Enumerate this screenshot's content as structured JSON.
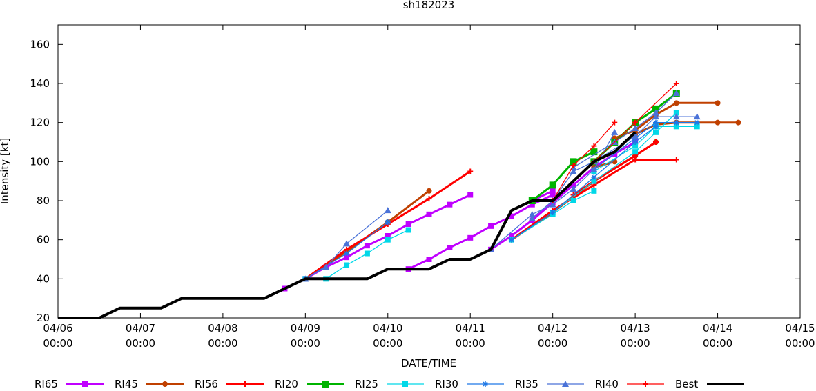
{
  "chart_data": {
    "type": "line",
    "title": "sh182023",
    "xlabel": "DATE/TIME",
    "ylabel": "Intensity [kt]",
    "xlim": [
      0,
      9
    ],
    "ylim": [
      20,
      170
    ],
    "x_unit": "days since 04/06 00:00",
    "x_ticks": [
      {
        "value": 0,
        "date": "04/06",
        "time": "00:00"
      },
      {
        "value": 1,
        "date": "04/07",
        "time": "00:00"
      },
      {
        "value": 2,
        "date": "04/08",
        "time": "00:00"
      },
      {
        "value": 3,
        "date": "04/09",
        "time": "00:00"
      },
      {
        "value": 4,
        "date": "04/10",
        "time": "00:00"
      },
      {
        "value": 5,
        "date": "04/11",
        "time": "00:00"
      },
      {
        "value": 6,
        "date": "04/12",
        "time": "00:00"
      },
      {
        "value": 7,
        "date": "04/13",
        "time": "00:00"
      },
      {
        "value": 8,
        "date": "04/14",
        "time": "00:00"
      },
      {
        "value": 9,
        "date": "04/15",
        "time": "00:00"
      }
    ],
    "y_ticks": [
      "20",
      "40",
      "60",
      "80",
      "100",
      "120",
      "140",
      "160"
    ],
    "series": [
      {
        "name": "RI65",
        "color": "#c000ff",
        "marker": "square",
        "weight": "thick",
        "tracks": [
          [
            [
              2.75,
              35
            ],
            [
              3.0,
              40
            ],
            [
              3.25,
              46
            ],
            [
              3.5,
              51
            ],
            [
              3.75,
              57
            ],
            [
              4.0,
              62
            ],
            [
              4.25,
              68
            ],
            [
              4.5,
              73
            ],
            [
              4.75,
              78
            ],
            [
              5.0,
              83
            ]
          ],
          [
            [
              4.25,
              45
            ],
            [
              4.5,
              50
            ],
            [
              4.75,
              56
            ],
            [
              5.0,
              61
            ],
            [
              5.25,
              67
            ],
            [
              5.5,
              72
            ],
            [
              5.75,
              78
            ],
            [
              6.0,
              83
            ]
          ],
          [
            [
              5.75,
              80
            ],
            [
              6.0,
              85
            ]
          ],
          [
            [
              5.25,
              55
            ],
            [
              5.5,
              62
            ],
            [
              5.75,
              70
            ],
            [
              6.0,
              79
            ],
            [
              6.25,
              88
            ],
            [
              6.5,
              97
            ],
            [
              6.75,
              104
            ],
            [
              7.0,
              110
            ]
          ]
        ]
      },
      {
        "name": "RI45",
        "color": "#c04000",
        "marker": "circle",
        "weight": "thick",
        "tracks": [
          [
            [
              3.0,
              40
            ],
            [
              3.5,
              54
            ],
            [
              4.0,
              69
            ],
            [
              4.5,
              85
            ]
          ],
          [
            [
              5.5,
              60
            ],
            [
              6.0,
              74
            ],
            [
              6.5,
              90
            ],
            [
              7.0,
              103
            ],
            [
              7.25,
              110
            ]
          ],
          [
            [
              6.5,
              97
            ],
            [
              6.75,
              100
            ]
          ],
          [
            [
              6.75,
              112
            ],
            [
              7.0,
              116
            ],
            [
              7.25,
              124
            ],
            [
              7.5,
              130
            ],
            [
              8.0,
              130
            ]
          ],
          [
            [
              7.0,
              114
            ],
            [
              7.25,
              119
            ],
            [
              7.5,
              120
            ],
            [
              8.0,
              120
            ],
            [
              8.25,
              120
            ]
          ]
        ]
      },
      {
        "name": "RI56",
        "color": "#ff0000",
        "marker": "plus",
        "weight": "thick",
        "tracks": [
          [
            [
              3.0,
              40
            ],
            [
              3.5,
              55
            ],
            [
              4.0,
              68
            ],
            [
              4.5,
              81
            ],
            [
              5.0,
              95
            ]
          ],
          [
            [
              5.5,
              60
            ],
            [
              6.0,
              75
            ],
            [
              6.5,
              88
            ],
            [
              7.0,
              101
            ],
            [
              7.5,
              101
            ]
          ],
          [
            [
              6.25,
              83
            ],
            [
              6.5,
              90
            ],
            [
              7.0,
              103
            ],
            [
              7.25,
              110
            ]
          ]
        ]
      },
      {
        "name": "RI20",
        "color": "#00b400",
        "marker": "boxcross",
        "weight": "thick",
        "tracks": [
          [
            [
              5.75,
              80
            ],
            [
              6.0,
              88
            ],
            [
              6.25,
              100
            ],
            [
              6.5,
              105
            ]
          ],
          [
            [
              6.5,
              100
            ],
            [
              6.75,
              110
            ],
            [
              7.0,
              120
            ],
            [
              7.25,
              127
            ],
            [
              7.5,
              135
            ]
          ]
        ]
      },
      {
        "name": "RI25",
        "color": "#00d8e8",
        "marker": "square",
        "weight": "thin",
        "tracks": [
          [
            [
              3.0,
              40
            ],
            [
              3.25,
              40
            ],
            [
              3.5,
              47
            ],
            [
              3.75,
              53
            ],
            [
              4.0,
              60
            ],
            [
              4.25,
              65
            ]
          ],
          [
            [
              5.5,
              60
            ],
            [
              6.0,
              73
            ],
            [
              6.25,
              80
            ],
            [
              6.5,
              85
            ]
          ],
          [
            [
              6.0,
              74
            ],
            [
              6.5,
              90
            ],
            [
              7.0,
              105
            ],
            [
              7.25,
              115
            ],
            [
              7.5,
              125
            ]
          ],
          [
            [
              6.5,
              95
            ],
            [
              7.0,
              108
            ],
            [
              7.25,
              118
            ],
            [
              7.5,
              118
            ],
            [
              7.75,
              118
            ]
          ]
        ]
      },
      {
        "name": "RI30",
        "color": "#1e78e6",
        "marker": "star",
        "weight": "thin",
        "tracks": [
          [
            [
              3.0,
              40
            ],
            [
              3.5,
              53
            ],
            [
              4.0,
              69
            ]
          ],
          [
            [
              5.5,
              60
            ],
            [
              6.0,
              74
            ],
            [
              6.5,
              92
            ],
            [
              7.0,
              110
            ],
            [
              7.25,
              118
            ]
          ],
          [
            [
              6.5,
              96
            ],
            [
              7.0,
              112
            ],
            [
              7.25,
              120
            ],
            [
              7.5,
              120
            ],
            [
              7.75,
              120
            ]
          ]
        ]
      },
      {
        "name": "RI35",
        "color": "#4a72d8",
        "marker": "triangle",
        "weight": "thin",
        "tracks": [
          [
            [
              3.0,
              40
            ],
            [
              3.25,
              46
            ],
            [
              3.5,
              58
            ],
            [
              4.0,
              75
            ]
          ],
          [
            [
              5.25,
              55
            ],
            [
              5.75,
              73
            ],
            [
              6.0,
              78
            ],
            [
              6.25,
              86
            ],
            [
              6.5,
              96
            ],
            [
              6.75,
              115
            ]
          ],
          [
            [
              5.75,
              71
            ],
            [
              6.0,
              80
            ],
            [
              6.25,
              95
            ],
            [
              6.5,
              100
            ],
            [
              7.0,
              113
            ],
            [
              7.25,
              123
            ],
            [
              7.5,
              123
            ],
            [
              7.75,
              123
            ]
          ],
          [
            [
              6.25,
              97
            ],
            [
              6.75,
              110
            ],
            [
              7.0,
              117
            ],
            [
              7.25,
              125
            ],
            [
              7.5,
              135
            ]
          ]
        ]
      },
      {
        "name": "RI40",
        "color": "#ff0000",
        "marker": "plus",
        "weight": "thin",
        "tracks": [
          [
            [
              6.0,
              80
            ],
            [
              6.25,
              98
            ],
            [
              6.5,
              108
            ],
            [
              6.75,
              120
            ]
          ],
          [
            [
              6.5,
              100
            ],
            [
              7.0,
              120
            ],
            [
              7.5,
              140
            ]
          ]
        ]
      },
      {
        "name": "Best",
        "color": "#000000",
        "marker": "none",
        "weight": "best",
        "tracks": [
          [
            [
              0,
              20
            ],
            [
              0.25,
              20
            ],
            [
              0.5,
              20
            ],
            [
              0.75,
              25
            ],
            [
              1.0,
              25
            ],
            [
              1.25,
              25
            ],
            [
              1.5,
              30
            ],
            [
              1.75,
              30
            ],
            [
              2.0,
              30
            ],
            [
              2.25,
              30
            ],
            [
              2.5,
              30
            ],
            [
              2.75,
              35
            ],
            [
              3.0,
              40
            ],
            [
              3.25,
              40
            ],
            [
              3.5,
              40
            ],
            [
              3.75,
              40
            ],
            [
              4.0,
              45
            ],
            [
              4.25,
              45
            ],
            [
              4.5,
              45
            ],
            [
              4.75,
              50
            ],
            [
              5.0,
              50
            ],
            [
              5.25,
              55
            ],
            [
              5.5,
              75
            ],
            [
              5.75,
              80
            ],
            [
              6.0,
              80
            ],
            [
              6.25,
              90
            ],
            [
              6.5,
              100
            ],
            [
              6.75,
              105
            ],
            [
              7.0,
              115
            ]
          ]
        ]
      }
    ]
  }
}
